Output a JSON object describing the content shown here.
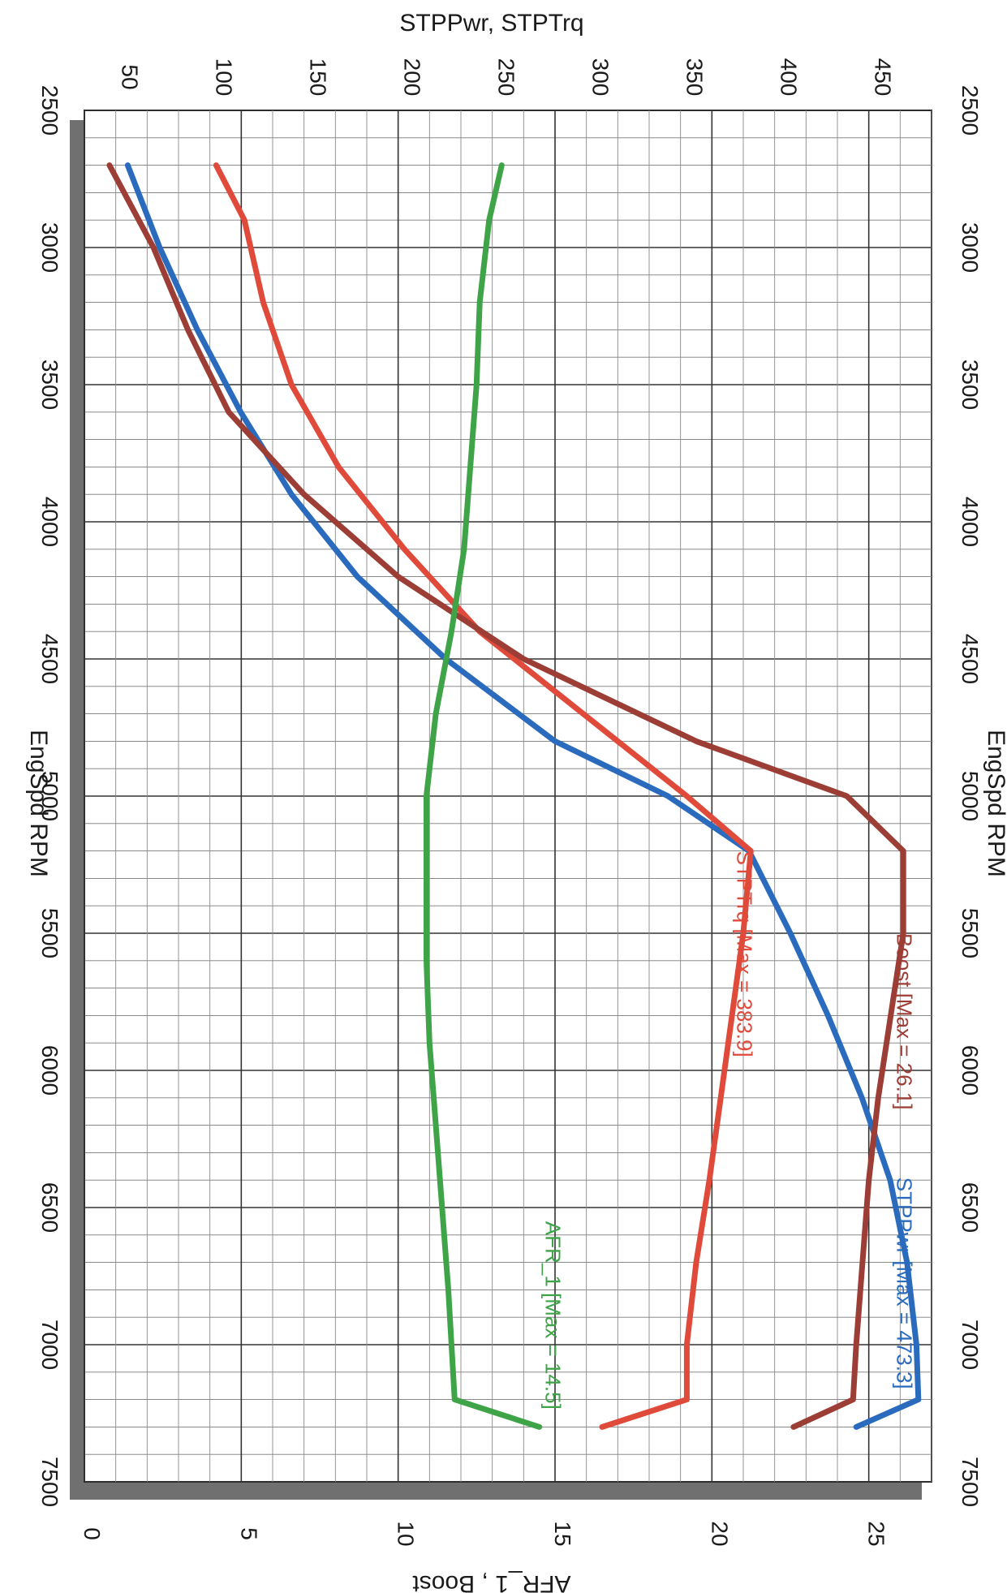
{
  "chart_data": {
    "type": "line",
    "x_axis": {
      "label": "EngSpd RPM",
      "range": [
        2500,
        7500
      ],
      "ticks": [
        "2500",
        "3000",
        "3500",
        "4000",
        "4500",
        "5000",
        "5500",
        "6000",
        "6500",
        "7000",
        "7500"
      ]
    },
    "y_axis_left": {
      "label": "STPPwr, STPTrq",
      "range": [
        30,
        480
      ],
      "ticks": [
        "50",
        "100",
        "150",
        "200",
        "250",
        "300",
        "350",
        "400",
        "450"
      ]
    },
    "y_axis_right": {
      "label": "AFR_1 , Boost",
      "range": [
        0,
        27
      ],
      "ticks": [
        "0",
        "5",
        "10",
        "15",
        "20",
        "25"
      ]
    },
    "grid": true,
    "series": [
      {
        "name": "STPPwr",
        "annotation": "STPPwr [Max = 473.3]",
        "axis": "left",
        "color": "#2a6bbd",
        "x": [
          2700,
          3000,
          3300,
          3600,
          3900,
          4200,
          4500,
          4800,
          5000,
          5200,
          5500,
          5800,
          6100,
          6400,
          6700,
          7000,
          7200,
          7300
        ],
        "y": [
          53,
          70,
          90,
          113,
          140,
          175,
          222,
          280,
          340,
          383,
          405,
          425,
          443,
          458,
          467,
          472,
          473,
          440
        ]
      },
      {
        "name": "STPTrq",
        "annotation": "STPTrq [Max = 383.9]",
        "axis": "left",
        "color": "#e04a3b",
        "x": [
          2700,
          2900,
          3200,
          3500,
          3800,
          4100,
          4400,
          4700,
          5000,
          5200,
          5500,
          5800,
          6100,
          6400,
          6700,
          7000,
          7200,
          7300
        ],
        "y": [
          100,
          115,
          125,
          140,
          165,
          200,
          240,
          295,
          350,
          384,
          380,
          374,
          368,
          362,
          355,
          350,
          350,
          305
        ]
      },
      {
        "name": "Boost",
        "annotation": "Boost  [Max = 26.1]",
        "axis": "right",
        "color": "#9c3d36",
        "x": [
          2700,
          3000,
          3300,
          3600,
          3900,
          4200,
          4500,
          4800,
          5000,
          5200,
          5500,
          5800,
          6100,
          6400,
          6700,
          7000,
          7200,
          7300
        ],
        "y": [
          0.8,
          2.2,
          3.3,
          4.6,
          7.0,
          10.0,
          14.0,
          19.5,
          24.3,
          26.1,
          26.1,
          25.7,
          25.3,
          25.0,
          24.8,
          24.6,
          24.5,
          22.6
        ]
      },
      {
        "name": "AFR_1",
        "annotation": "AFR_1  [Max = 14.5]",
        "axis": "right",
        "color": "#3fa348",
        "x": [
          2700,
          2900,
          3200,
          3500,
          3800,
          4100,
          4400,
          4700,
          5000,
          5300,
          5600,
          5900,
          6200,
          6500,
          6800,
          7000,
          7200,
          7300
        ],
        "y": [
          13.3,
          12.9,
          12.6,
          12.5,
          12.3,
          12.1,
          11.7,
          11.2,
          10.9,
          10.9,
          10.9,
          11.0,
          11.2,
          11.4,
          11.6,
          11.7,
          11.8,
          14.5
        ]
      }
    ]
  }
}
